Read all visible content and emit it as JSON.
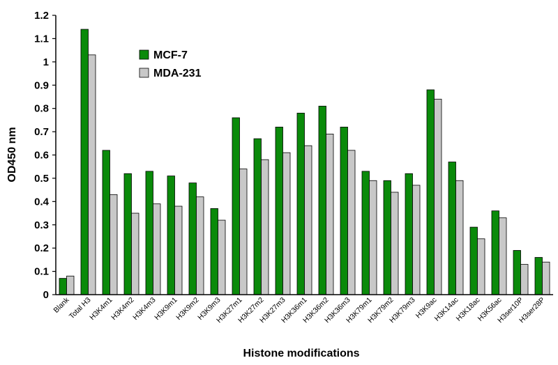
{
  "chart_data": {
    "type": "bar",
    "xlabel": "Histone modifications",
    "ylabel": "OD450 nm",
    "ylim": [
      0,
      1.2
    ],
    "yticks": [
      "0",
      "0.1",
      "0.2",
      "0.3",
      "0.4",
      "0.5",
      "0.6",
      "0.7",
      "0.8",
      "0.9",
      "1",
      "1.1",
      "1.2"
    ],
    "grid": false,
    "legend_position": "top-left",
    "categories": [
      "Blank",
      "Total H3",
      "H3K4m1",
      "H3K4m2",
      "H3K4m3",
      "H3K9m1",
      "H3K9m2",
      "H3K9m3",
      "H3K27m1",
      "H3K27m2",
      "H3K27m3",
      "H3K36m1",
      "H3K36m2",
      "H3K36m3",
      "H3K79m1",
      "H3K79m2",
      "H3K79m3",
      "H3K9ac",
      "H3K14ac",
      "H3K18ac",
      "H3K56ac",
      "H3ser10P",
      "H3ser28P"
    ],
    "series": [
      {
        "name": "MCF-7",
        "color": "#0a8a0a",
        "values": [
          0.07,
          1.14,
          0.62,
          0.52,
          0.53,
          0.51,
          0.48,
          0.37,
          0.76,
          0.67,
          0.72,
          0.78,
          0.81,
          0.72,
          0.53,
          0.49,
          0.52,
          0.88,
          0.57,
          0.29,
          0.36,
          0.19,
          0.16
        ]
      },
      {
        "name": "MDA-231",
        "color": "#c8c8c8",
        "values": [
          0.08,
          1.03,
          0.43,
          0.35,
          0.39,
          0.38,
          0.42,
          0.32,
          0.54,
          0.58,
          0.61,
          0.64,
          0.69,
          0.62,
          0.49,
          0.44,
          0.47,
          0.84,
          0.49,
          0.24,
          0.33,
          0.13,
          0.14
        ]
      }
    ]
  }
}
